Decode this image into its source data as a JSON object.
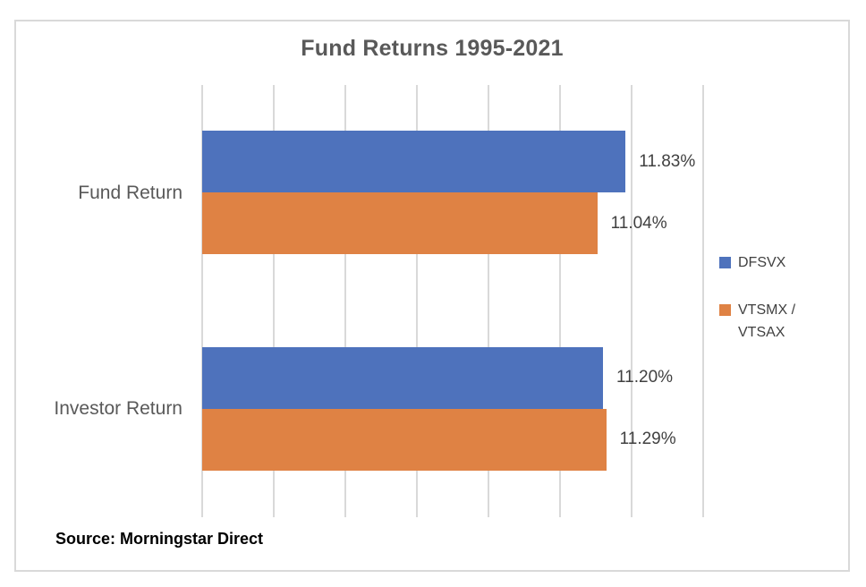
{
  "chart_data": {
    "type": "bar",
    "orientation": "horizontal",
    "title": "Fund Returns 1995-2021",
    "categories": [
      "Fund Return",
      "Investor Return"
    ],
    "series": [
      {
        "name": "DFSVX",
        "color": "#4E72BC",
        "values": [
          11.83,
          11.2
        ],
        "labels": [
          "11.83%",
          "11.20%"
        ]
      },
      {
        "name": "VTSMX / VTSAX",
        "color": "#DF8244",
        "values": [
          11.04,
          11.29
        ],
        "labels": [
          "11.04%",
          "11.29%"
        ]
      }
    ],
    "xlim": [
      0,
      14
    ],
    "gridline_step": 2,
    "grid": true,
    "tick_labels_visible": false,
    "legend_position": "right"
  },
  "source_note": "Source: Morningstar Direct",
  "colors": {
    "frame_border": "#D9D9D9",
    "gridline": "#D9D9D9",
    "title_text": "#595959",
    "category_text": "#595959",
    "data_label_text": "#404040",
    "legend_text": "#404040",
    "source_text": "#000000",
    "background": "#ffffff"
  }
}
